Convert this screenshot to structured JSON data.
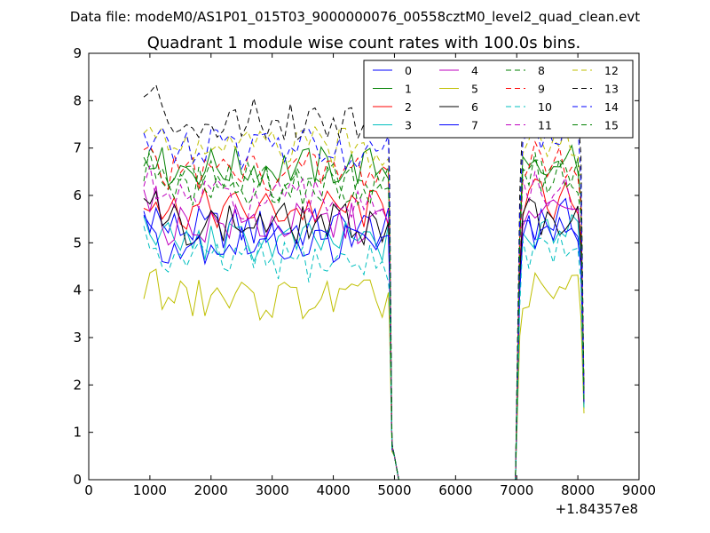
{
  "chart_data": {
    "type": "line",
    "suptitle": "Data file: modeM0/AS1P01_015T03_9000000076_00558cztM0_level2_quad_clean.evt",
    "title": "Quadrant 1 module wise count rates with 100.0s bins.",
    "xlabel": "",
    "ylabel": "",
    "x_offset_label": "+1.84357e8",
    "xlim": [
      0,
      9000
    ],
    "ylim": [
      0,
      9
    ],
    "x_ticks": [
      "0",
      "1000",
      "2000",
      "3000",
      "4000",
      "5000",
      "6000",
      "7000",
      "8000",
      "9000"
    ],
    "y_ticks": [
      "0",
      "1",
      "2",
      "3",
      "4",
      "5",
      "6",
      "7",
      "8",
      "9"
    ],
    "legend_location": "upper right",
    "legend_columns": 4,
    "x_gap_note": "count rates drop to 0 between about 5100 and 7000",
    "series": [
      {
        "name": "0",
        "color": "#0000ff",
        "dash": "solid",
        "base": 5.3,
        "end": 1.6
      },
      {
        "name": "1",
        "color": "#008000",
        "dash": "solid",
        "base": 6.6,
        "end": 1.7
      },
      {
        "name": "2",
        "color": "#ff0000",
        "dash": "solid",
        "base": 5.7,
        "end": 1.6
      },
      {
        "name": "3",
        "color": "#00bfbf",
        "dash": "solid",
        "base": 5.0,
        "end": 1.5
      },
      {
        "name": "4",
        "color": "#bf00bf",
        "dash": "solid",
        "base": 5.4,
        "end": 1.6
      },
      {
        "name": "5",
        "color": "#bfbf00",
        "dash": "solid",
        "base": 3.8,
        "end": 1.4
      },
      {
        "name": "6",
        "color": "#000000",
        "dash": "solid",
        "base": 5.4,
        "end": 1.6
      },
      {
        "name": "7",
        "color": "#0000ff",
        "dash": "solid",
        "base": 5.0,
        "end": 1.6
      },
      {
        "name": "8",
        "color": "#008000",
        "dash": "dashed",
        "base": 6.3,
        "end": 1.7
      },
      {
        "name": "9",
        "color": "#ff0000",
        "dash": "dashed",
        "base": 6.5,
        "end": 1.8
      },
      {
        "name": "10",
        "color": "#00bfbf",
        "dash": "dashed",
        "base": 4.6,
        "end": 1.5
      },
      {
        "name": "11",
        "color": "#bf00bf",
        "dash": "dashed",
        "base": 5.9,
        "end": 1.7
      },
      {
        "name": "12",
        "color": "#bfbf00",
        "dash": "dashed",
        "base": 7.0,
        "end": 1.8
      },
      {
        "name": "13",
        "color": "#000000",
        "dash": "dashed",
        "base": 7.6,
        "end": 1.9
      },
      {
        "name": "14",
        "color": "#0000ff",
        "dash": "dashed",
        "base": 7.0,
        "end": 1.8
      },
      {
        "name": "15",
        "color": "#008000",
        "dash": "dashed",
        "base": 6.2,
        "end": 1.7
      }
    ]
  }
}
